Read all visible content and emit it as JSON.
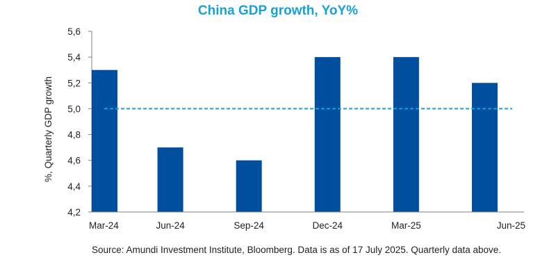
{
  "chart_data": {
    "type": "bar",
    "title": "China GDP growth, YoY%",
    "ylabel": "%, Quarterly GDP growth",
    "xlabel": "",
    "categories": [
      "Mar-24",
      "Jun-24",
      "Sep-24",
      "Dec-24",
      "Mar-25",
      "Jun-25"
    ],
    "values": [
      5.3,
      4.7,
      4.6,
      5.4,
      5.4,
      5.2
    ],
    "ylim": [
      4.2,
      5.6
    ],
    "yticks": [
      4.2,
      4.4,
      4.6,
      4.8,
      5.0,
      5.2,
      5.4,
      5.6
    ],
    "ytick_labels": [
      "4,2",
      "4,4",
      "4,6",
      "4,8",
      "5,0",
      "5,2",
      "5,4",
      "5,6"
    ],
    "reference_line": 5.0,
    "grid": false,
    "bar_color": "#004f9f",
    "reference_line_color": "#1aa0d8"
  },
  "source_note": "Source: Amundi Investment Institute, Bloomberg. Data is as of  17 July 2025. Quarterly data above."
}
